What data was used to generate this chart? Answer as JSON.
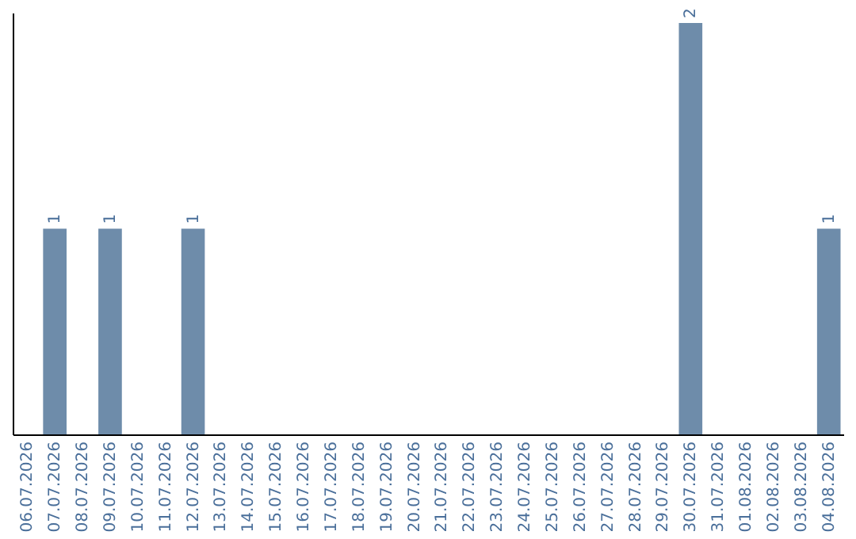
{
  "chart_data": {
    "type": "bar",
    "categories": [
      "06.07.2026",
      "07.07.2026",
      "08.07.2026",
      "09.07.2026",
      "10.07.2026",
      "11.07.2026",
      "12.07.2026",
      "13.07.2026",
      "14.07.2026",
      "15.07.2026",
      "16.07.2026",
      "17.07.2026",
      "18.07.2026",
      "19.07.2026",
      "20.07.2026",
      "21.07.2026",
      "22.07.2026",
      "23.07.2026",
      "24.07.2026",
      "25.07.2026",
      "26.07.2026",
      "27.07.2026",
      "28.07.2026",
      "29.07.2026",
      "30.07.2026",
      "31.07.2026",
      "01.08.2026",
      "02.08.2026",
      "03.08.2026",
      "04.08.2026"
    ],
    "values": [
      0,
      1,
      0,
      1,
      0,
      0,
      1,
      0,
      0,
      0,
      0,
      0,
      0,
      0,
      0,
      0,
      0,
      0,
      0,
      0,
      0,
      0,
      0,
      0,
      2,
      0,
      0,
      0,
      0,
      1
    ],
    "value_labels": [
      null,
      "1",
      null,
      "1",
      null,
      null,
      "1",
      null,
      null,
      null,
      null,
      null,
      null,
      null,
      null,
      null,
      null,
      null,
      null,
      null,
      null,
      null,
      null,
      null,
      "2",
      null,
      null,
      null,
      null,
      "1"
    ],
    "color": "#6e8caa",
    "ylim": [
      0,
      2.05
    ],
    "tick_labels": "x",
    "grid": false
  }
}
